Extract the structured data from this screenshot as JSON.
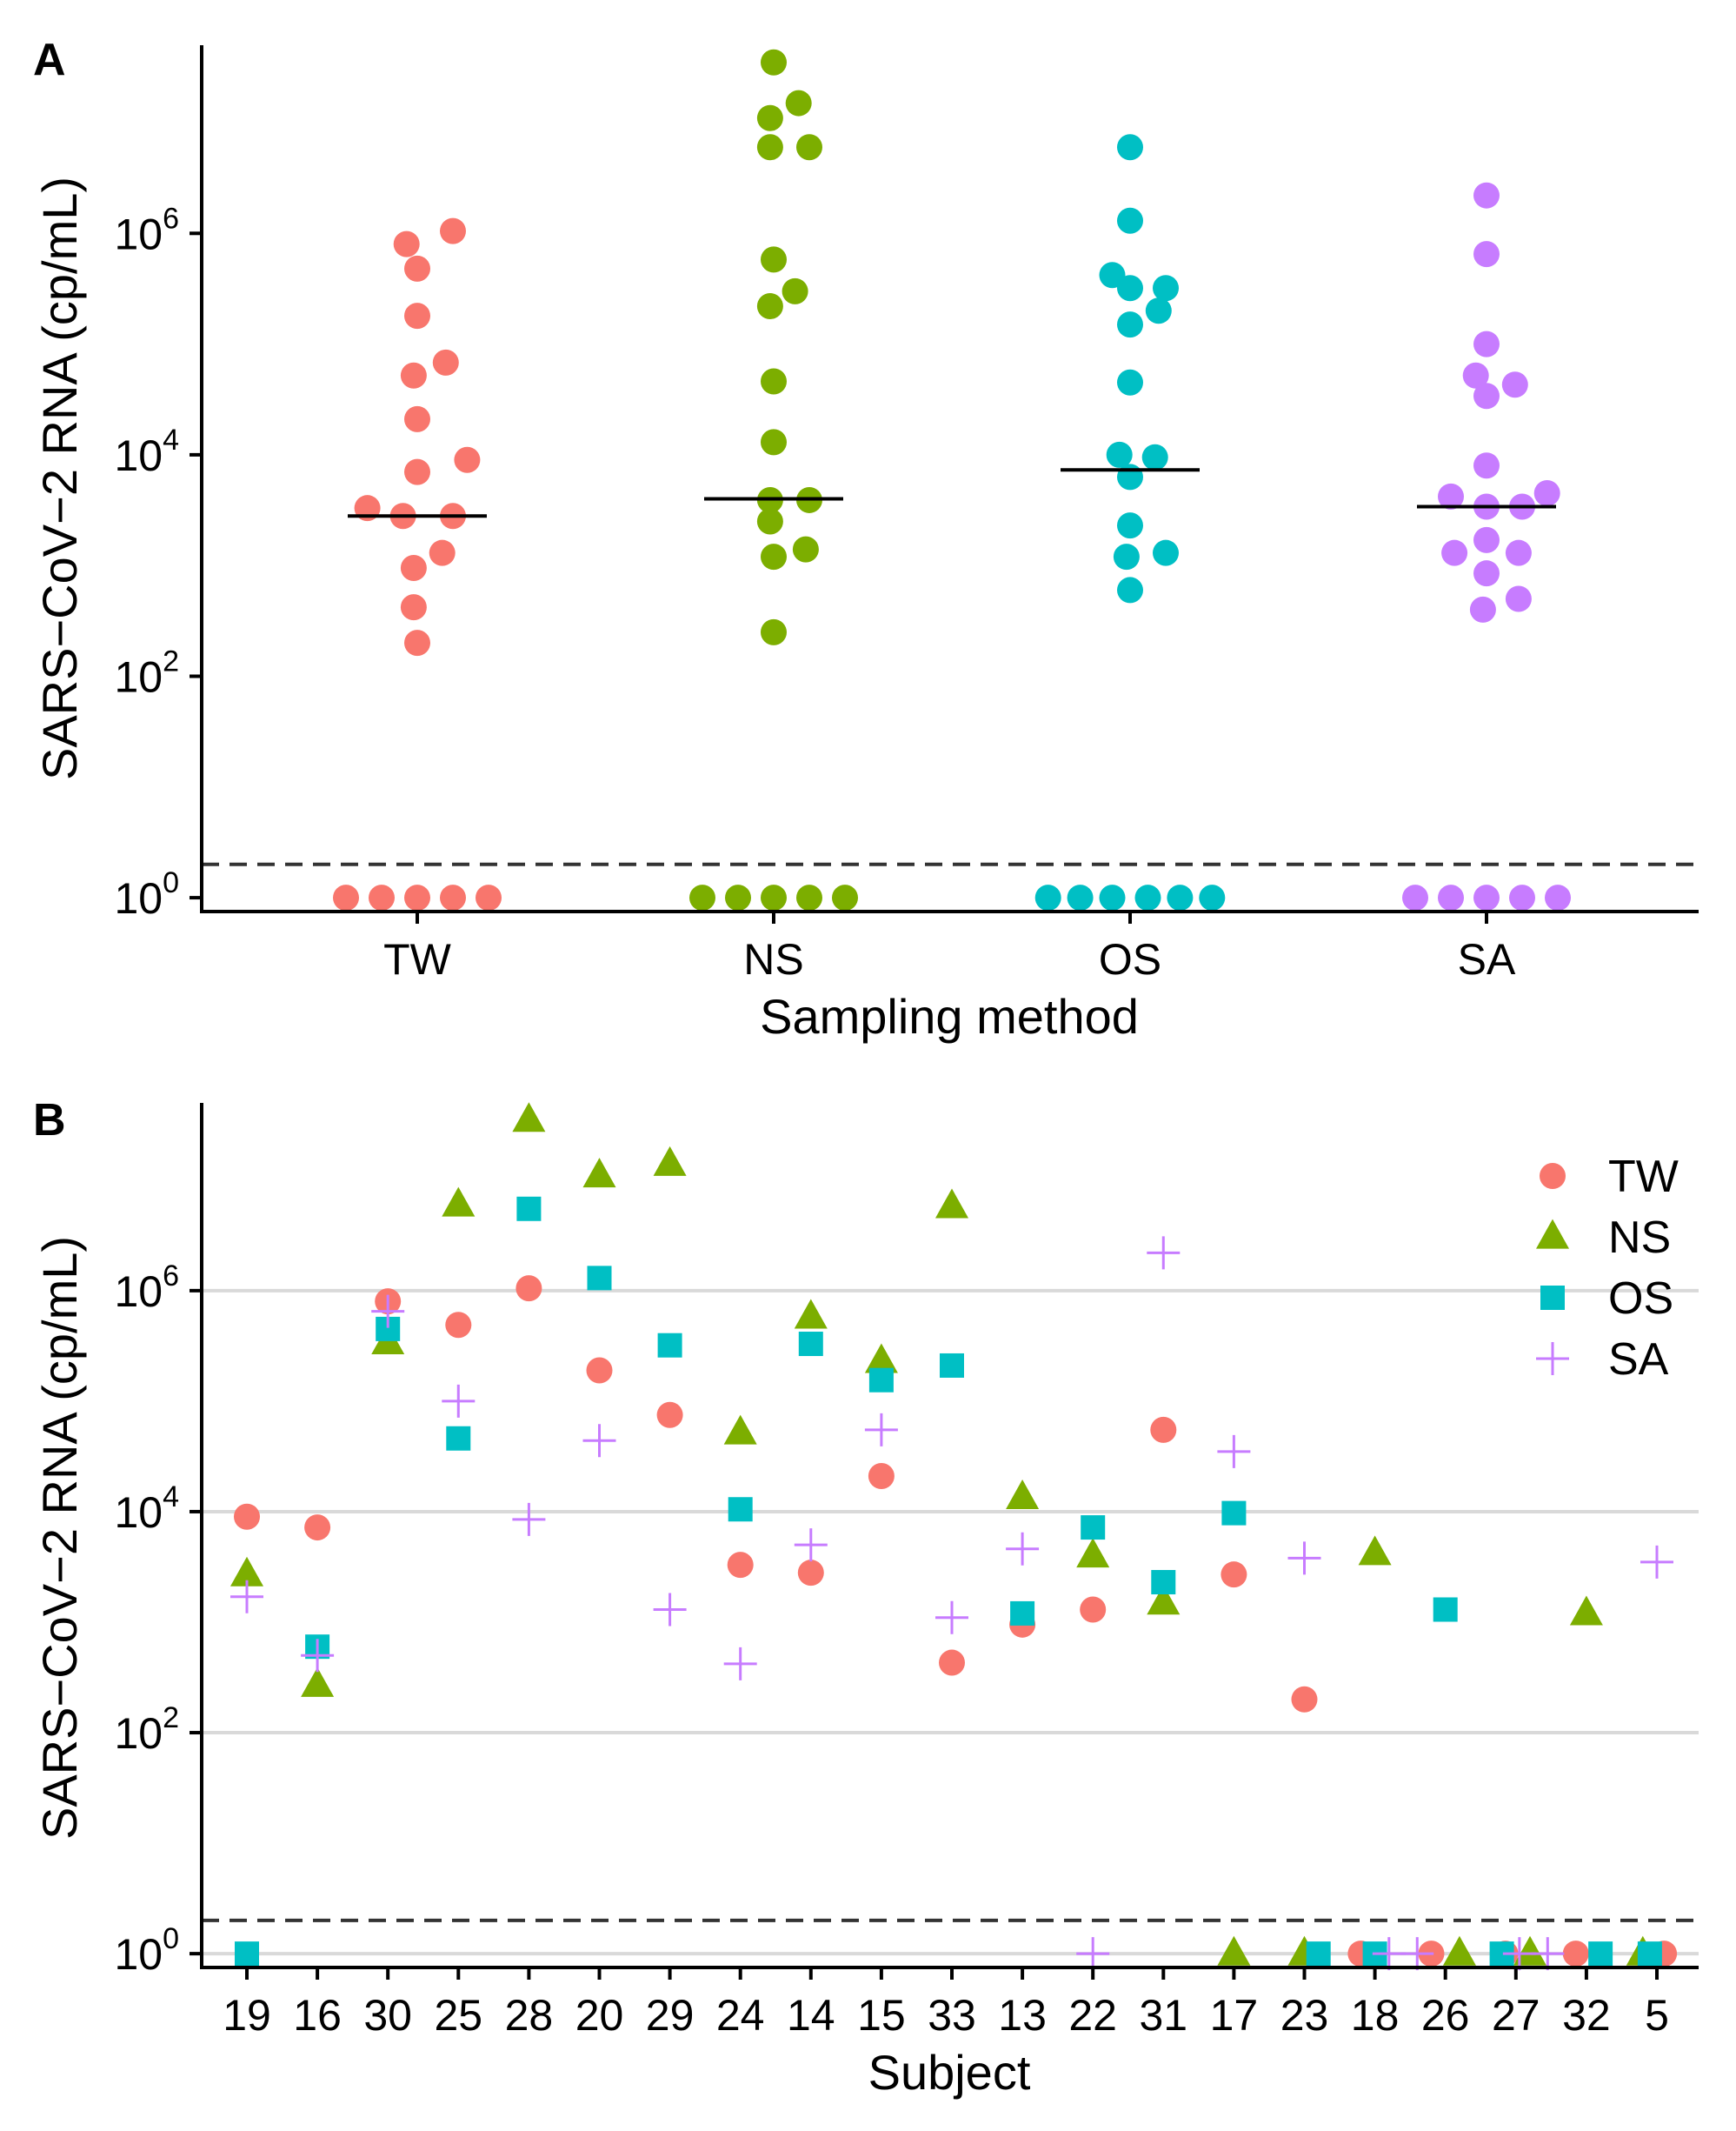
{
  "chart_data": [
    {
      "type": "scatter",
      "panel_label": "A",
      "title": "",
      "xlabel": "Sampling method",
      "ylabel": "SARS−CoV−2 RNA (cp/mL)",
      "yscale": "log10",
      "ylim": [
        0.75,
        50000000
      ],
      "yticks": [
        {
          "value": 1,
          "base": "10",
          "exp": "0"
        },
        {
          "value": 100,
          "base": "10",
          "exp": "2"
        },
        {
          "value": 10000,
          "base": "10",
          "exp": "4"
        },
        {
          "value": 1000000,
          "base": "10",
          "exp": "6"
        }
      ],
      "grid": false,
      "detection_limit": 2,
      "categories": [
        "TW",
        "NS",
        "OS",
        "SA"
      ],
      "series": [
        {
          "name": "TW",
          "color": "#F8766D",
          "median": 2800,
          "points": [
            {
              "x": -0.03,
              "y": 800000
            },
            {
              "x": 0.1,
              "y": 1050000
            },
            {
              "x": 0.0,
              "y": 480000
            },
            {
              "x": 0.0,
              "y": 180000
            },
            {
              "x": 0.08,
              "y": 68000
            },
            {
              "x": -0.01,
              "y": 52000
            },
            {
              "x": 0.0,
              "y": 21000
            },
            {
              "x": 0.14,
              "y": 9000
            },
            {
              "x": 0.0,
              "y": 7000
            },
            {
              "x": -0.14,
              "y": 3300
            },
            {
              "x": -0.04,
              "y": 2800
            },
            {
              "x": 0.1,
              "y": 2800
            },
            {
              "x": 0.07,
              "y": 1300
            },
            {
              "x": -0.01,
              "y": 950
            },
            {
              "x": -0.01,
              "y": 420
            },
            {
              "x": 0.0,
              "y": 200
            },
            {
              "x": -0.2,
              "y": 1
            },
            {
              "x": -0.1,
              "y": 1
            },
            {
              "x": 0.0,
              "y": 1
            },
            {
              "x": 0.1,
              "y": 1
            },
            {
              "x": 0.2,
              "y": 1
            }
          ]
        },
        {
          "name": "NS",
          "color": "#7CAE00",
          "median": 4000,
          "points": [
            {
              "x": 0.0,
              "y": 35000000
            },
            {
              "x": 0.07,
              "y": 15000000
            },
            {
              "x": -0.01,
              "y": 11000000
            },
            {
              "x": -0.01,
              "y": 6000000
            },
            {
              "x": 0.1,
              "y": 6000000
            },
            {
              "x": 0.0,
              "y": 580000
            },
            {
              "x": 0.06,
              "y": 300000
            },
            {
              "x": -0.01,
              "y": 220000
            },
            {
              "x": 0.0,
              "y": 46000
            },
            {
              "x": 0.0,
              "y": 13000
            },
            {
              "x": -0.01,
              "y": 3900
            },
            {
              "x": 0.1,
              "y": 3900
            },
            {
              "x": -0.01,
              "y": 2500
            },
            {
              "x": 0.09,
              "y": 1400
            },
            {
              "x": 0.0,
              "y": 1200
            },
            {
              "x": 0.0,
              "y": 250
            },
            {
              "x": -0.2,
              "y": 1
            },
            {
              "x": -0.1,
              "y": 1
            },
            {
              "x": 0.0,
              "y": 1
            },
            {
              "x": 0.1,
              "y": 1
            },
            {
              "x": 0.2,
              "y": 1
            }
          ]
        },
        {
          "name": "OS",
          "color": "#00BFC4",
          "median": 7300,
          "points": [
            {
              "x": 0.0,
              "y": 6000000
            },
            {
              "x": 0.0,
              "y": 1300000
            },
            {
              "x": -0.05,
              "y": 420000
            },
            {
              "x": 0.0,
              "y": 320000
            },
            {
              "x": 0.1,
              "y": 320000
            },
            {
              "x": 0.08,
              "y": 200000
            },
            {
              "x": 0.0,
              "y": 150000
            },
            {
              "x": 0.0,
              "y": 45000
            },
            {
              "x": -0.03,
              "y": 10000
            },
            {
              "x": 0.07,
              "y": 9500
            },
            {
              "x": 0.0,
              "y": 6300
            },
            {
              "x": 0.0,
              "y": 2300
            },
            {
              "x": 0.1,
              "y": 1300
            },
            {
              "x": -0.01,
              "y": 1200
            },
            {
              "x": 0.0,
              "y": 600
            },
            {
              "x": -0.23,
              "y": 1
            },
            {
              "x": -0.14,
              "y": 1
            },
            {
              "x": -0.05,
              "y": 1
            },
            {
              "x": 0.05,
              "y": 1
            },
            {
              "x": 0.14,
              "y": 1
            },
            {
              "x": 0.23,
              "y": 1
            }
          ]
        },
        {
          "name": "SA",
          "color": "#C77CFF",
          "median": 3400,
          "points": [
            {
              "x": 0.0,
              "y": 2200000
            },
            {
              "x": 0.0,
              "y": 650000
            },
            {
              "x": 0.0,
              "y": 100000
            },
            {
              "x": -0.03,
              "y": 52000
            },
            {
              "x": 0.08,
              "y": 43000
            },
            {
              "x": 0.0,
              "y": 34000
            },
            {
              "x": 0.0,
              "y": 8000
            },
            {
              "x": -0.1,
              "y": 4200
            },
            {
              "x": 0.17,
              "y": 4500
            },
            {
              "x": 0.0,
              "y": 3400
            },
            {
              "x": 0.1,
              "y": 3400
            },
            {
              "x": 0.0,
              "y": 1700
            },
            {
              "x": -0.09,
              "y": 1300
            },
            {
              "x": 0.09,
              "y": 1300
            },
            {
              "x": 0.0,
              "y": 850
            },
            {
              "x": 0.09,
              "y": 500
            },
            {
              "x": -0.01,
              "y": 400
            },
            {
              "x": -0.2,
              "y": 1
            },
            {
              "x": -0.1,
              "y": 1
            },
            {
              "x": 0.0,
              "y": 1
            },
            {
              "x": 0.1,
              "y": 1
            },
            {
              "x": 0.2,
              "y": 1
            }
          ]
        }
      ]
    },
    {
      "type": "scatter",
      "panel_label": "B",
      "title": "",
      "xlabel": "Subject",
      "ylabel": "SARS−CoV−2 RNA (cp/mL)",
      "yscale": "log10",
      "ylim": [
        0.75,
        50000000
      ],
      "yticks": [
        {
          "value": 1,
          "base": "10",
          "exp": "0"
        },
        {
          "value": 100,
          "base": "10",
          "exp": "2"
        },
        {
          "value": 10000,
          "base": "10",
          "exp": "4"
        },
        {
          "value": 1000000,
          "base": "10",
          "exp": "6"
        }
      ],
      "grid": true,
      "detection_limit": 2,
      "legend_position": "top-right",
      "categories": [
        "19",
        "16",
        "30",
        "25",
        "28",
        "20",
        "29",
        "24",
        "14",
        "15",
        "33",
        "13",
        "22",
        "31",
        "17",
        "23",
        "18",
        "26",
        "27",
        "32",
        "5"
      ],
      "series": [
        {
          "name": "TW",
          "shape": "circle",
          "color": "#F8766D",
          "points": [
            {
              "x": 0,
              "y": 9000
            },
            {
              "x": 1,
              "y": 7200
            },
            {
              "x": 2,
              "y": 800000
            },
            {
              "x": 3,
              "y": 490000
            },
            {
              "x": 4,
              "y": 1050000
            },
            {
              "x": 5,
              "y": 190000
            },
            {
              "x": 6,
              "y": 75000
            },
            {
              "x": 7,
              "y": 3300
            },
            {
              "x": 8,
              "y": 2800
            },
            {
              "x": 9,
              "y": 21000
            },
            {
              "x": 10,
              "y": 430
            },
            {
              "x": 11,
              "y": 950
            },
            {
              "x": 12,
              "y": 1300
            },
            {
              "x": 13,
              "y": 55000
            },
            {
              "x": 14,
              "y": 2700
            },
            {
              "x": 15,
              "y": 200
            },
            {
              "x": 15.8,
              "y": 1
            },
            {
              "x": 16.8,
              "y": 1
            },
            {
              "x": 17.85,
              "y": 1
            },
            {
              "x": 18.85,
              "y": 1
            },
            {
              "x": 20.1,
              "y": 1
            }
          ]
        },
        {
          "name": "NS",
          "shape": "triangle",
          "color": "#7CAE00",
          "points": [
            {
              "x": 0,
              "y": 2700
            },
            {
              "x": 1,
              "y": 270
            },
            {
              "x": 2,
              "y": 340000
            },
            {
              "x": 3,
              "y": 6000000
            },
            {
              "x": 4,
              "y": 35000000
            },
            {
              "x": 5,
              "y": 11000000
            },
            {
              "x": 6,
              "y": 14000000
            },
            {
              "x": 7,
              "y": 52000
            },
            {
              "x": 8,
              "y": 580000
            },
            {
              "x": 9,
              "y": 230000
            },
            {
              "x": 10,
              "y": 5800000
            },
            {
              "x": 11,
              "y": 13500
            },
            {
              "x": 12,
              "y": 4000
            },
            {
              "x": 13,
              "y": 1500
            },
            {
              "x": 14,
              "y": 1
            },
            {
              "x": 15,
              "y": 1
            },
            {
              "x": 16,
              "y": 4200
            },
            {
              "x": 17.2,
              "y": 1
            },
            {
              "x": 18.2,
              "y": 1
            },
            {
              "x": 19,
              "y": 1200
            },
            {
              "x": 19.8,
              "y": 1
            }
          ]
        },
        {
          "name": "OS",
          "shape": "square",
          "color": "#00BFC4",
          "points": [
            {
              "x": 0,
              "y": 1
            },
            {
              "x": 1,
              "y": 600
            },
            {
              "x": 2,
              "y": 450000
            },
            {
              "x": 3,
              "y": 46000
            },
            {
              "x": 4,
              "y": 5500000
            },
            {
              "x": 5,
              "y": 1300000
            },
            {
              "x": 6,
              "y": 320000
            },
            {
              "x": 7,
              "y": 10500
            },
            {
              "x": 8,
              "y": 330000
            },
            {
              "x": 9,
              "y": 155000
            },
            {
              "x": 10,
              "y": 210000
            },
            {
              "x": 11,
              "y": 1200
            },
            {
              "x": 12,
              "y": 7200
            },
            {
              "x": 13,
              "y": 2300
            },
            {
              "x": 14,
              "y": 9700
            },
            {
              "x": 15.2,
              "y": 1
            },
            {
              "x": 16,
              "y": 1
            },
            {
              "x": 17,
              "y": 1300
            },
            {
              "x": 17.8,
              "y": 1
            },
            {
              "x": 19.2,
              "y": 1
            },
            {
              "x": 19.9,
              "y": 1
            }
          ]
        },
        {
          "name": "SA",
          "shape": "plus",
          "color": "#C77CFF",
          "points": [
            {
              "x": 0,
              "y": 1700
            },
            {
              "x": 1,
              "y": 500
            },
            {
              "x": 2,
              "y": 650000
            },
            {
              "x": 3,
              "y": 100000
            },
            {
              "x": 4,
              "y": 8500
            },
            {
              "x": 5,
              "y": 44000
            },
            {
              "x": 6,
              "y": 1300
            },
            {
              "x": 7,
              "y": 420
            },
            {
              "x": 8,
              "y": 5000
            },
            {
              "x": 9,
              "y": 55000
            },
            {
              "x": 10,
              "y": 1100
            },
            {
              "x": 11,
              "y": 4600
            },
            {
              "x": 12,
              "y": 1
            },
            {
              "x": 13,
              "y": 2200000
            },
            {
              "x": 14,
              "y": 35000
            },
            {
              "x": 15,
              "y": 3800
            },
            {
              "x": 16.2,
              "y": 1
            },
            {
              "x": 16.6,
              "y": 1
            },
            {
              "x": 18.05,
              "y": 1
            },
            {
              "x": 18.45,
              "y": 1
            },
            {
              "x": 20,
              "y": 3500
            }
          ]
        }
      ]
    }
  ]
}
